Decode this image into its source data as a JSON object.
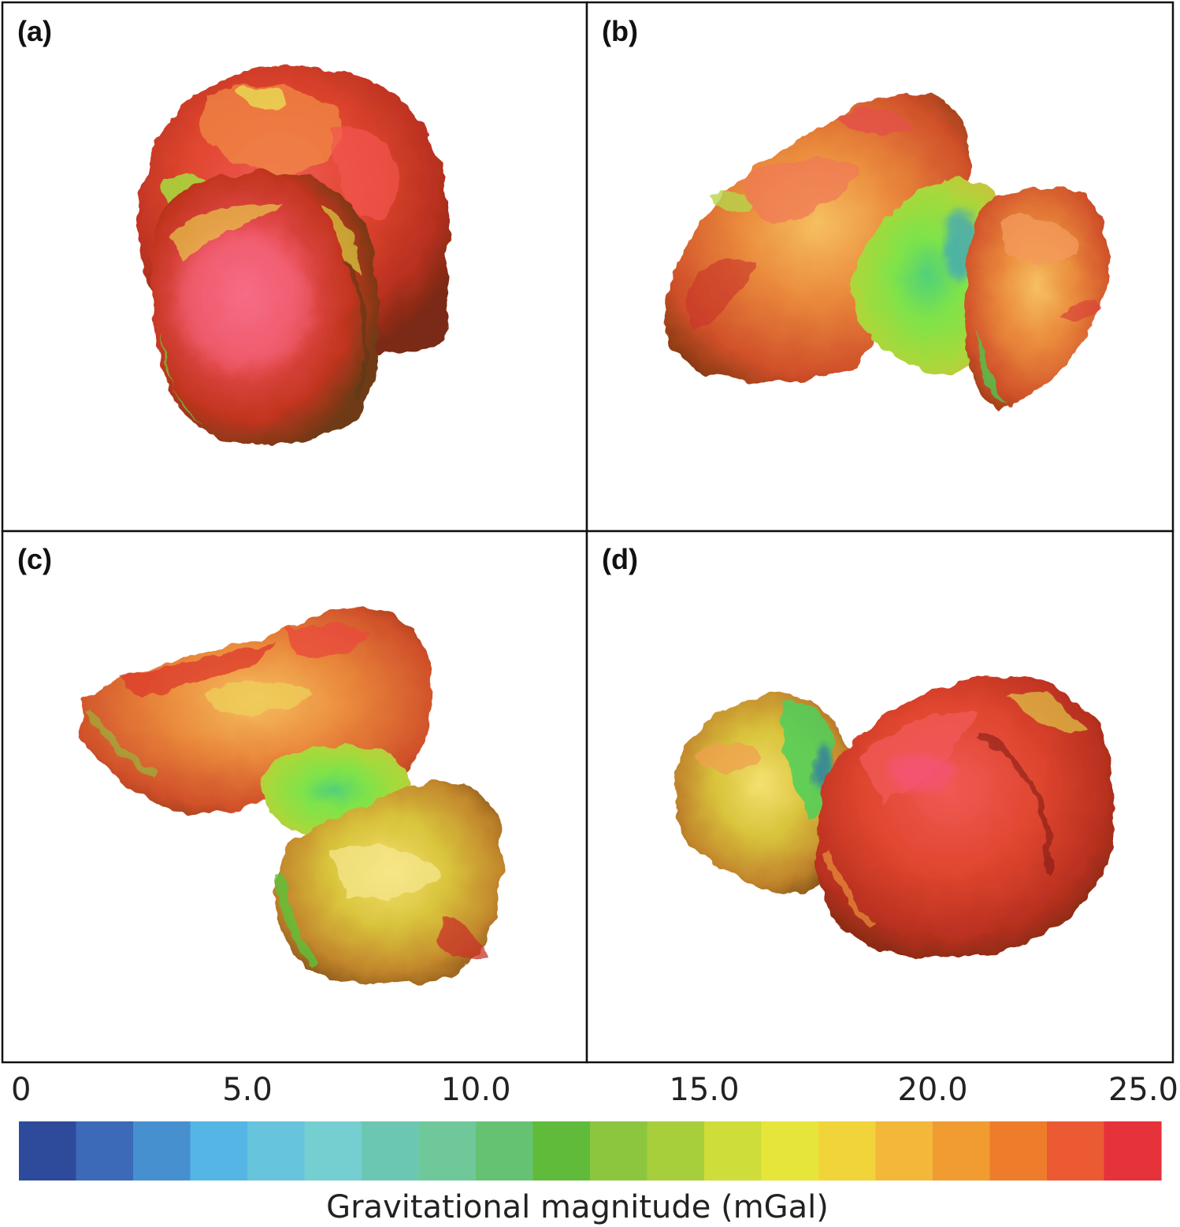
{
  "panels": [
    {
      "label": "(a)"
    },
    {
      "label": "(b)"
    },
    {
      "label": "(c)"
    },
    {
      "label": "(d)"
    }
  ],
  "colorbar": {
    "title": "Gravitational magnitude (mGal)",
    "min": 0,
    "max": 25,
    "tick_labels": [
      "0",
      "5.0",
      "10.0",
      "15.0",
      "20.0",
      "25.0"
    ],
    "tick_values": [
      0,
      5,
      10,
      15,
      20,
      25
    ],
    "colors": [
      "#2e4b9b",
      "#3c69b8",
      "#4690d0",
      "#55b5e4",
      "#66c4dc",
      "#75cfd0",
      "#6cc7b2",
      "#6fc89a",
      "#66c273",
      "#60bb3a",
      "#8cc63f",
      "#a7cf3b",
      "#cfdd3a",
      "#e6e63a",
      "#f0d43a",
      "#f3b83a",
      "#f09c30",
      "#ef7c2b",
      "#eb5a33",
      "#e6323a"
    ]
  }
}
